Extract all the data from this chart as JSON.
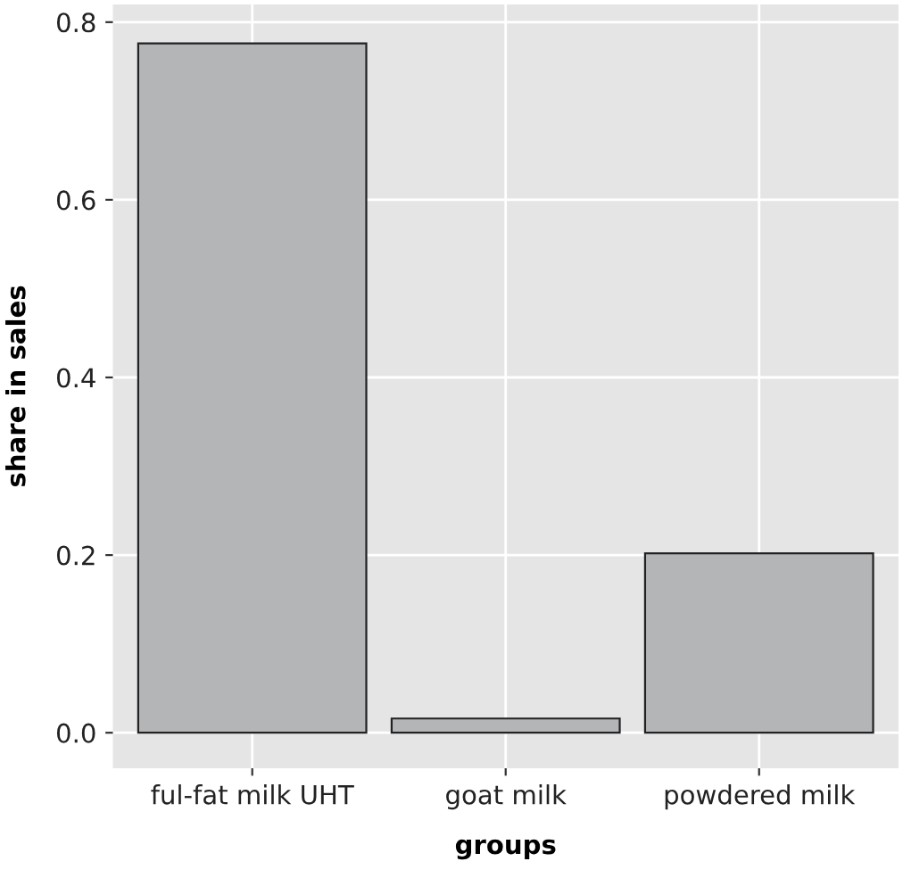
{
  "chart_data": {
    "type": "bar",
    "xlabel": "groups",
    "ylabel": "share in sales",
    "categories": [
      "ful-fat milk UHT",
      "goat milk",
      "powdered milk"
    ],
    "values": [
      0.776,
      0.016,
      0.202
    ],
    "color": "#b3b5b7",
    "ylim": [
      -0.04,
      0.82
    ],
    "yticks": [
      {
        "value": 0,
        "label": "0.0"
      },
      {
        "value": 0.2,
        "label": "0.2"
      },
      {
        "value": 0.4,
        "label": "0.4"
      },
      {
        "value": 0.6,
        "label": "0.6"
      },
      {
        "value": 0.8,
        "label": "0.8"
      }
    ],
    "grid": true
  }
}
